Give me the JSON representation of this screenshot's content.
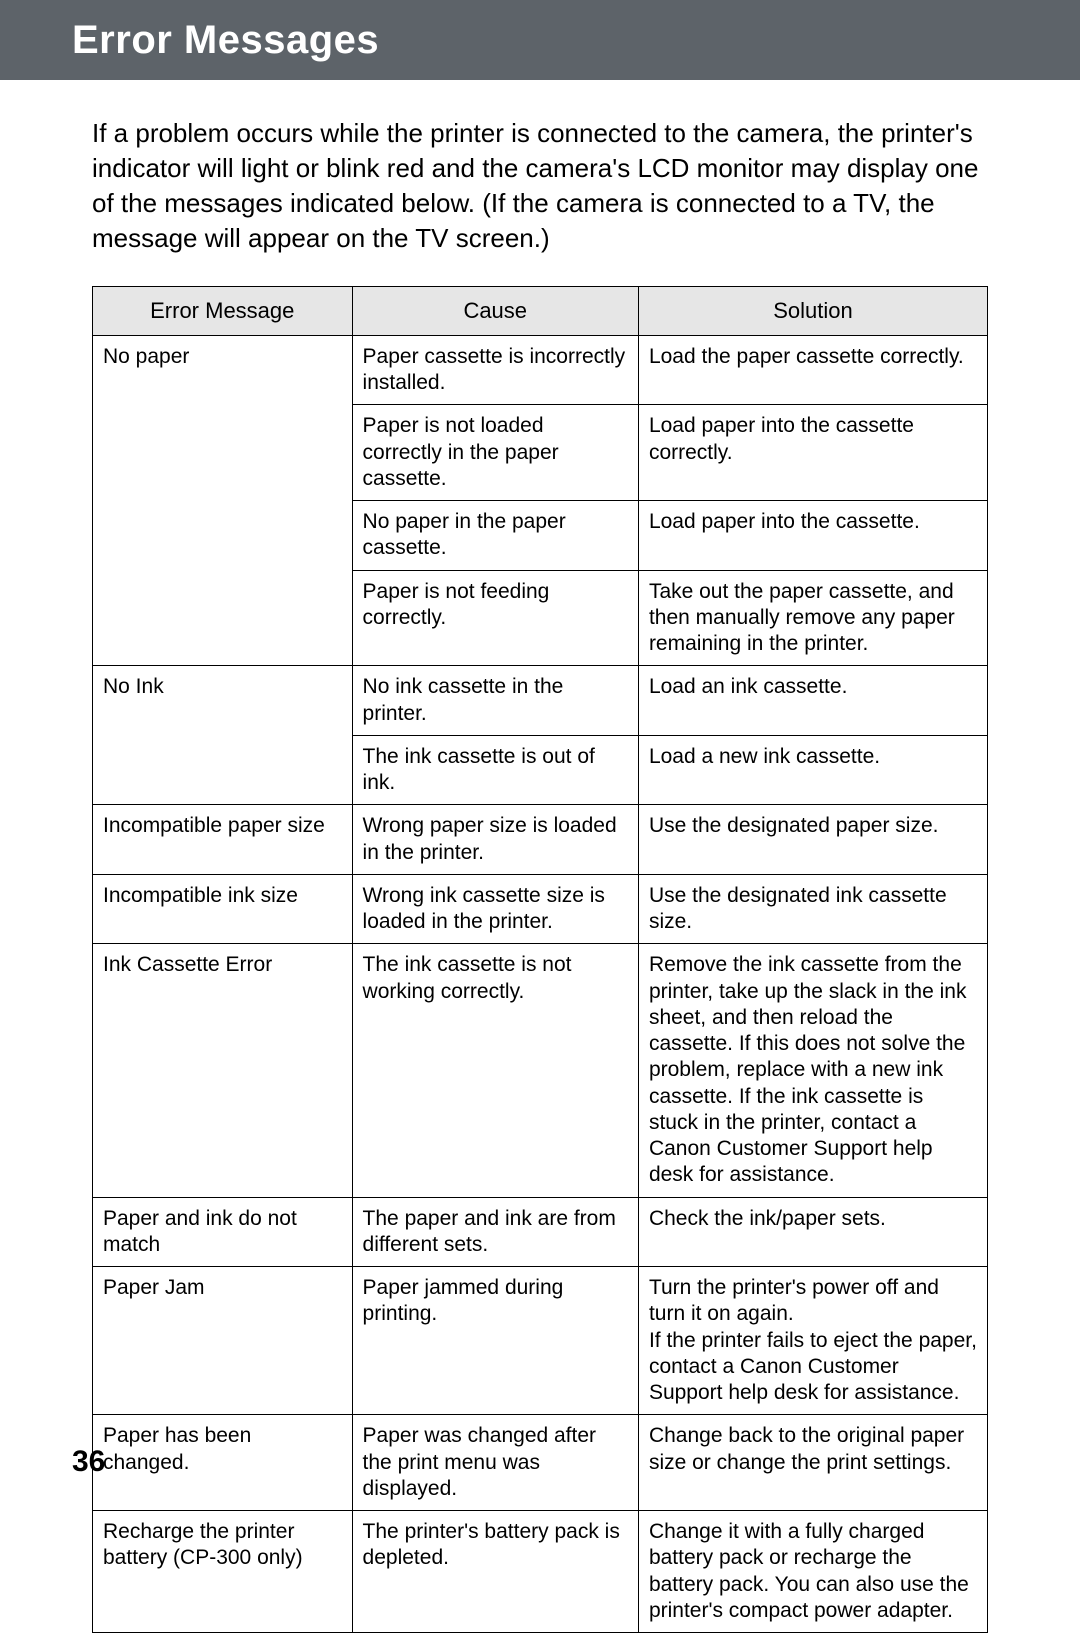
{
  "header": {
    "title": "Error Messages"
  },
  "intro": "If a problem occurs while the printer is connected to the camera, the printer's indicator will light or blink red and the camera's LCD monitor may display one of the messages indicated below. (If the camera is connected to a TV, the message will appear on the TV screen.)",
  "table": {
    "headers": {
      "msg": "Error Message",
      "cause": "Cause",
      "solution": "Solution"
    },
    "rows": [
      {
        "msg": "No paper",
        "msg_rowspan": 4,
        "cause": "Paper cassette is incorrectly installed.",
        "solution": "Load the paper cassette correctly."
      },
      {
        "cause": "Paper is not loaded correctly in the paper cassette.",
        "solution": "Load paper into the cassette correctly."
      },
      {
        "cause": "No paper in the paper cassette.",
        "solution": "Load paper into the cassette."
      },
      {
        "cause": "Paper is not feeding correctly.",
        "solution": "Take out the paper cassette, and then manually remove any paper remaining in the printer."
      },
      {
        "msg": "No Ink",
        "msg_rowspan": 2,
        "cause": "No ink cassette in the printer.",
        "solution": "Load an ink cassette."
      },
      {
        "cause": "The ink cassette is out of ink.",
        "solution": "Load a new ink cassette."
      },
      {
        "msg": "Incompatible paper size",
        "msg_rowspan": 1,
        "cause": "Wrong paper size is loaded in the printer.",
        "solution": "Use the designated paper size."
      },
      {
        "msg": "Incompatible ink size",
        "msg_rowspan": 1,
        "cause": "Wrong ink cassette size is loaded in the printer.",
        "solution": "Use the designated ink cassette size."
      },
      {
        "msg": "Ink Cassette Error",
        "msg_rowspan": 1,
        "cause": "The ink cassette is not working correctly.",
        "solution": "Remove the ink cassette from the printer, take up the slack in the ink sheet, and then reload the cassette. If this does not solve the problem, replace with a new ink cassette. If the ink cassette is stuck in the printer, contact a Canon Customer Support help desk for assistance."
      },
      {
        "msg": "Paper and ink do not match",
        "msg_rowspan": 1,
        "cause": "The paper and ink are from different sets.",
        "solution": "Check the ink/paper sets."
      },
      {
        "msg": "Paper Jam",
        "msg_rowspan": 1,
        "cause": "Paper jammed during printing.",
        "solution": "Turn the printer's power off and turn it on again.\nIf the printer fails to eject the paper, contact a Canon Customer Support help desk for assistance."
      },
      {
        "msg": "Paper has been changed.",
        "msg_rowspan": 1,
        "cause": "Paper was changed after the print menu was displayed.",
        "solution": "Change back to the original paper size or change the print settings."
      },
      {
        "msg": "Recharge the printer battery (CP-300 only)",
        "msg_rowspan": 1,
        "cause": "The printer's battery pack is depleted.",
        "solution": "Change it with a fully charged battery pack or recharge the battery pack. You can also use the printer's compact power adapter."
      }
    ]
  },
  "page_number": "36"
}
